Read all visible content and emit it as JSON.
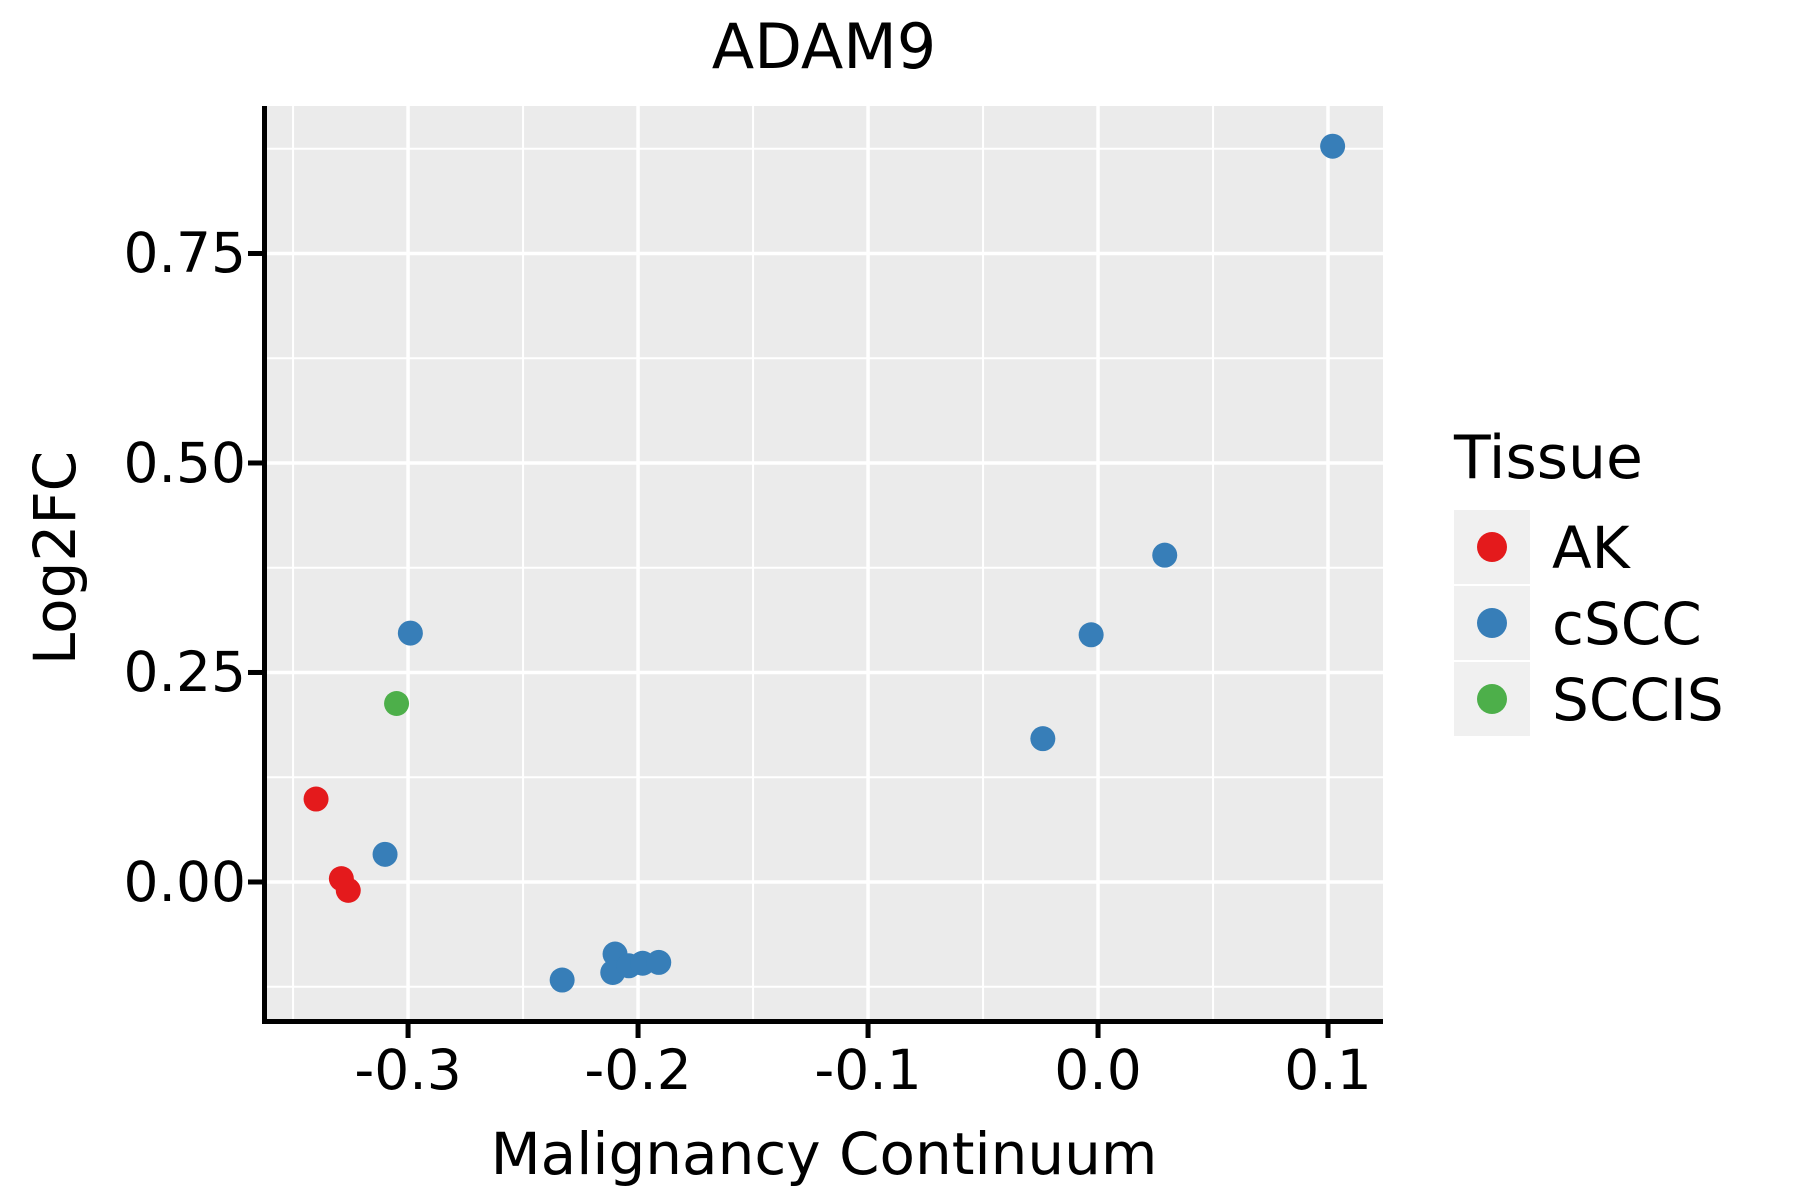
{
  "chart_data": {
    "type": "scatter",
    "title": "ADAM9",
    "xlabel": "Malignancy Continuum",
    "ylabel": "Log2FC",
    "legend": {
      "title": "Tissue",
      "position": "right"
    },
    "panel_background": "#EBEBEB",
    "gridline_color": "#FFFFFF",
    "axis_color": "#000000",
    "legend_key_background": "#F0F0F0",
    "grid": true,
    "xlim": [
      -0.3622,
      0.1239
    ],
    "ylim": [
      -0.1659,
      0.926
    ],
    "x_major_ticks": [
      {
        "value": -0.3,
        "label": "-0.3"
      },
      {
        "value": -0.2,
        "label": "-0.2"
      },
      {
        "value": -0.1,
        "label": "-0.1"
      },
      {
        "value": 0.0,
        "label": "0.0"
      },
      {
        "value": 0.1,
        "label": "0.1"
      }
    ],
    "x_minor_ticks": [
      -0.35,
      -0.25,
      -0.15,
      -0.05,
      0.05
    ],
    "y_major_ticks": [
      {
        "value": 0.0,
        "label": "0.00"
      },
      {
        "value": 0.25,
        "label": "0.25"
      },
      {
        "value": 0.5,
        "label": "0.50"
      },
      {
        "value": 0.75,
        "label": "0.75"
      }
    ],
    "y_minor_ticks": [
      -0.125,
      0.125,
      0.375,
      0.625,
      0.875
    ],
    "series": [
      {
        "name": "AK",
        "color": "#E41A1C",
        "points": [
          [
            -0.34,
            0.099
          ],
          [
            -0.329,
            0.004
          ],
          [
            -0.326,
            -0.01
          ]
        ]
      },
      {
        "name": "cSCC",
        "color": "#377EB8",
        "points": [
          [
            0.102,
            0.878
          ],
          [
            0.029,
            0.39
          ],
          [
            -0.003,
            0.295
          ],
          [
            -0.024,
            0.171
          ],
          [
            -0.299,
            0.297
          ],
          [
            -0.31,
            0.033
          ],
          [
            -0.233,
            -0.117
          ],
          [
            -0.21,
            -0.086
          ],
          [
            -0.211,
            -0.108
          ],
          [
            -0.204,
            -0.1
          ],
          [
            -0.198,
            -0.097
          ],
          [
            -0.191,
            -0.096
          ]
        ]
      },
      {
        "name": "SCCIS",
        "color": "#4DAF4A",
        "points": [
          [
            -0.305,
            0.213
          ]
        ]
      }
    ]
  }
}
